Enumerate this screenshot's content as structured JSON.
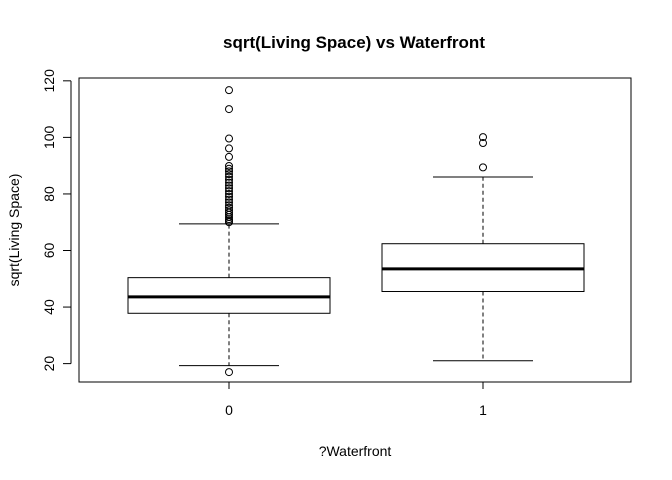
{
  "chart_data": {
    "type": "boxplot",
    "title": "sqrt(Living Space) vs Waterfront",
    "xlabel": "?Waterfront",
    "ylabel": "sqrt(Living Space)",
    "ylim": [
      13.5,
      121
    ],
    "yticks": [
      20,
      40,
      60,
      80,
      100,
      120
    ],
    "categories": [
      "0",
      "1"
    ],
    "boxes": [
      {
        "category": "0",
        "lower_whisker": 19.3,
        "q1": 37.8,
        "median": 43.6,
        "q3": 50.4,
        "upper_whisker": 69.4,
        "outliers": [
          116.7,
          110.0,
          99.6,
          96.1,
          93.1,
          89.9,
          88.9,
          88.0,
          87.0,
          86.1,
          85.0,
          84.0,
          83.0,
          82.0,
          81.0,
          80.0,
          79.0,
          78.0,
          77.0,
          76.0,
          75.1,
          74.2,
          73.4,
          72.6,
          71.8,
          71.1,
          70.5,
          70.0,
          17.0
        ]
      },
      {
        "category": "1",
        "lower_whisker": 21.0,
        "q1": 45.5,
        "median": 53.5,
        "q3": 62.4,
        "upper_whisker": 86.0,
        "outliers": [
          100.1,
          98.0,
          89.4
        ]
      }
    ],
    "grid": false,
    "legend": "none",
    "colors": {
      "line": "#000000",
      "box_fill": "#ffffff",
      "background": "#ffffff"
    }
  }
}
